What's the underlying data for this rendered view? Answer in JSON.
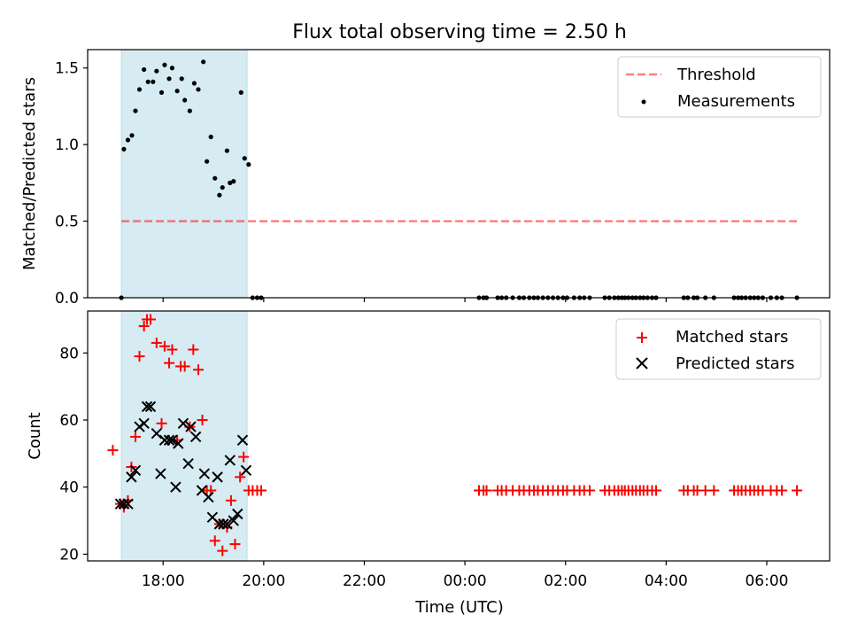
{
  "title": "Flux total observing time = 2.50 h",
  "colors": {
    "shade": "#add8e6",
    "threshold": "#ff0000",
    "matched": "#ff0000",
    "predicted": "#000000",
    "measurement": "#000000"
  },
  "chart_data": [
    {
      "type": "scatter",
      "panel": "top",
      "ylabel": "Matched/Predicted stars",
      "xlim": [
        16.5,
        31.25
      ],
      "ylim": [
        0,
        1.62
      ],
      "yticks": [
        0.0,
        0.5,
        1.0,
        1.5
      ],
      "ytick_labels": [
        "0.0",
        "0.5",
        "1.0",
        "1.5"
      ],
      "shaded_span": [
        17.17,
        19.67
      ],
      "legend_position": "top-right",
      "threshold": {
        "name": "Threshold",
        "value": 0.5,
        "x_range": [
          17.17,
          30.67
        ]
      },
      "series": [
        {
          "name": "Measurements",
          "points": [
            [
              17.17,
              0.0
            ],
            [
              17.22,
              0.97
            ],
            [
              17.3,
              1.03
            ],
            [
              17.38,
              1.06
            ],
            [
              17.45,
              1.22
            ],
            [
              17.53,
              1.36
            ],
            [
              17.62,
              1.49
            ],
            [
              17.7,
              1.41
            ],
            [
              17.8,
              1.41
            ],
            [
              17.87,
              1.48
            ],
            [
              17.97,
              1.34
            ],
            [
              18.03,
              1.52
            ],
            [
              18.12,
              1.43
            ],
            [
              18.18,
              1.5
            ],
            [
              18.28,
              1.35
            ],
            [
              18.37,
              1.43
            ],
            [
              18.43,
              1.29
            ],
            [
              18.53,
              1.22
            ],
            [
              18.62,
              1.4
            ],
            [
              18.7,
              1.36
            ],
            [
              18.8,
              1.54
            ],
            [
              18.87,
              0.89
            ],
            [
              18.95,
              1.05
            ],
            [
              19.03,
              0.78
            ],
            [
              19.12,
              0.67
            ],
            [
              19.18,
              0.72
            ],
            [
              19.27,
              0.96
            ],
            [
              19.33,
              0.75
            ],
            [
              19.4,
              0.76
            ],
            [
              19.55,
              1.34
            ],
            [
              19.62,
              0.91
            ],
            [
              19.7,
              0.87
            ],
            [
              19.78,
              0.0
            ],
            [
              19.87,
              0.0
            ],
            [
              19.95,
              0.0
            ],
            [
              24.28,
              0.0
            ],
            [
              24.37,
              0.0
            ],
            [
              24.43,
              0.0
            ],
            [
              24.65,
              0.0
            ],
            [
              24.73,
              0.0
            ],
            [
              24.82,
              0.0
            ],
            [
              24.95,
              0.0
            ],
            [
              25.08,
              0.0
            ],
            [
              25.17,
              0.0
            ],
            [
              25.28,
              0.0
            ],
            [
              25.37,
              0.0
            ],
            [
              25.45,
              0.0
            ],
            [
              25.55,
              0.0
            ],
            [
              25.65,
              0.0
            ],
            [
              25.75,
              0.0
            ],
            [
              25.85,
              0.0
            ],
            [
              25.95,
              0.0
            ],
            [
              26.03,
              0.0
            ],
            [
              26.17,
              0.0
            ],
            [
              26.28,
              0.0
            ],
            [
              26.37,
              0.0
            ],
            [
              26.48,
              0.0
            ],
            [
              26.78,
              0.0
            ],
            [
              26.87,
              0.0
            ],
            [
              26.97,
              0.0
            ],
            [
              27.05,
              0.0
            ],
            [
              27.12,
              0.0
            ],
            [
              27.18,
              0.0
            ],
            [
              27.25,
              0.0
            ],
            [
              27.33,
              0.0
            ],
            [
              27.4,
              0.0
            ],
            [
              27.48,
              0.0
            ],
            [
              27.55,
              0.0
            ],
            [
              27.63,
              0.0
            ],
            [
              27.72,
              0.0
            ],
            [
              27.8,
              0.0
            ],
            [
              28.35,
              0.0
            ],
            [
              28.43,
              0.0
            ],
            [
              28.55,
              0.0
            ],
            [
              28.62,
              0.0
            ],
            [
              28.78,
              0.0
            ],
            [
              28.95,
              0.0
            ],
            [
              29.35,
              0.0
            ],
            [
              29.43,
              0.0
            ],
            [
              29.5,
              0.0
            ],
            [
              29.58,
              0.0
            ],
            [
              29.67,
              0.0
            ],
            [
              29.75,
              0.0
            ],
            [
              29.83,
              0.0
            ],
            [
              29.92,
              0.0
            ],
            [
              30.08,
              0.0
            ],
            [
              30.2,
              0.0
            ],
            [
              30.3,
              0.0
            ],
            [
              30.6,
              0.0
            ]
          ]
        }
      ]
    },
    {
      "type": "scatter",
      "panel": "bottom",
      "xlabel": "Time (UTC)",
      "ylabel": "Count",
      "xlim": [
        16.5,
        31.25
      ],
      "ylim": [
        18,
        92.5
      ],
      "xticks": [
        18,
        20,
        22,
        24,
        26,
        28,
        30
      ],
      "xtick_labels": [
        "18:00",
        "20:00",
        "22:00",
        "00:00",
        "02:00",
        "04:00",
        "06:00"
      ],
      "yticks": [
        20,
        40,
        60,
        80
      ],
      "ytick_labels": [
        "20",
        "40",
        "60",
        "80"
      ],
      "shaded_span": [
        17.17,
        19.67
      ],
      "legend_position": "top-right",
      "series": [
        {
          "name": "Matched stars",
          "marker": "plus",
          "points": [
            [
              17.0,
              51
            ],
            [
              17.15,
              35
            ],
            [
              17.22,
              34
            ],
            [
              17.3,
              36
            ],
            [
              17.37,
              46
            ],
            [
              17.45,
              55
            ],
            [
              17.53,
              79
            ],
            [
              17.62,
              88
            ],
            [
              17.68,
              90
            ],
            [
              17.75,
              90
            ],
            [
              17.87,
              83
            ],
            [
              17.97,
              59
            ],
            [
              18.03,
              82
            ],
            [
              18.12,
              77
            ],
            [
              18.18,
              81
            ],
            [
              18.28,
              54
            ],
            [
              18.35,
              76
            ],
            [
              18.43,
              76
            ],
            [
              18.53,
              58
            ],
            [
              18.6,
              81
            ],
            [
              18.7,
              75
            ],
            [
              18.78,
              60
            ],
            [
              18.87,
              39
            ],
            [
              18.95,
              39
            ],
            [
              19.03,
              24
            ],
            [
              19.12,
              29
            ],
            [
              19.18,
              21
            ],
            [
              19.27,
              28
            ],
            [
              19.35,
              36
            ],
            [
              19.43,
              23
            ],
            [
              19.53,
              43
            ],
            [
              19.6,
              49
            ],
            [
              19.7,
              39
            ],
            [
              19.78,
              39
            ],
            [
              19.87,
              39
            ],
            [
              19.95,
              39
            ],
            [
              24.28,
              39
            ],
            [
              24.37,
              39
            ],
            [
              24.43,
              39
            ],
            [
              24.65,
              39
            ],
            [
              24.73,
              39
            ],
            [
              24.82,
              39
            ],
            [
              24.95,
              39
            ],
            [
              25.08,
              39
            ],
            [
              25.17,
              39
            ],
            [
              25.28,
              39
            ],
            [
              25.37,
              39
            ],
            [
              25.45,
              39
            ],
            [
              25.55,
              39
            ],
            [
              25.65,
              39
            ],
            [
              25.75,
              39
            ],
            [
              25.85,
              39
            ],
            [
              25.95,
              39
            ],
            [
              26.03,
              39
            ],
            [
              26.17,
              39
            ],
            [
              26.28,
              39
            ],
            [
              26.37,
              39
            ],
            [
              26.48,
              39
            ],
            [
              26.78,
              39
            ],
            [
              26.87,
              39
            ],
            [
              26.97,
              39
            ],
            [
              27.05,
              39
            ],
            [
              27.12,
              39
            ],
            [
              27.18,
              39
            ],
            [
              27.25,
              39
            ],
            [
              27.33,
              39
            ],
            [
              27.4,
              39
            ],
            [
              27.48,
              39
            ],
            [
              27.55,
              39
            ],
            [
              27.63,
              39
            ],
            [
              27.72,
              39
            ],
            [
              27.8,
              39
            ],
            [
              28.35,
              39
            ],
            [
              28.43,
              39
            ],
            [
              28.55,
              39
            ],
            [
              28.62,
              39
            ],
            [
              28.78,
              39
            ],
            [
              28.95,
              39
            ],
            [
              29.35,
              39
            ],
            [
              29.43,
              39
            ],
            [
              29.5,
              39
            ],
            [
              29.58,
              39
            ],
            [
              29.67,
              39
            ],
            [
              29.75,
              39
            ],
            [
              29.83,
              39
            ],
            [
              29.92,
              39
            ],
            [
              30.08,
              39
            ],
            [
              30.2,
              39
            ],
            [
              30.3,
              39
            ],
            [
              30.6,
              39
            ]
          ]
        },
        {
          "name": "Predicted stars",
          "marker": "x",
          "points": [
            [
              17.15,
              35
            ],
            [
              17.22,
              35
            ],
            [
              17.3,
              35
            ],
            [
              17.37,
              43
            ],
            [
              17.45,
              45
            ],
            [
              17.53,
              58
            ],
            [
              17.62,
              59
            ],
            [
              17.68,
              64
            ],
            [
              17.75,
              64
            ],
            [
              17.87,
              56
            ],
            [
              17.95,
              44
            ],
            [
              18.03,
              54
            ],
            [
              18.12,
              54
            ],
            [
              18.18,
              54
            ],
            [
              18.25,
              40
            ],
            [
              18.3,
              53
            ],
            [
              18.4,
              59
            ],
            [
              18.5,
              47
            ],
            [
              18.55,
              58
            ],
            [
              18.65,
              55
            ],
            [
              18.77,
              39
            ],
            [
              18.82,
              44
            ],
            [
              18.9,
              37
            ],
            [
              18.98,
              31
            ],
            [
              19.08,
              43
            ],
            [
              19.12,
              29
            ],
            [
              19.2,
              29
            ],
            [
              19.27,
              29
            ],
            [
              19.33,
              48
            ],
            [
              19.4,
              30
            ],
            [
              19.48,
              32
            ],
            [
              19.58,
              54
            ],
            [
              19.65,
              45
            ]
          ]
        }
      ]
    }
  ]
}
